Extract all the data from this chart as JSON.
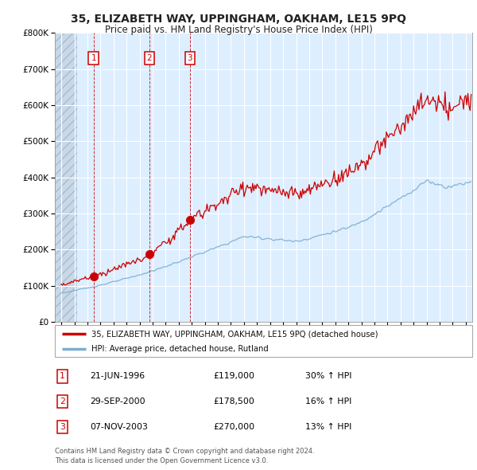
{
  "title": "35, ELIZABETH WAY, UPPINGHAM, OAKHAM, LE15 9PQ",
  "subtitle": "Price paid vs. HM Land Registry's House Price Index (HPI)",
  "legend_house": "35, ELIZABETH WAY, UPPINGHAM, OAKHAM, LE15 9PQ (detached house)",
  "legend_hpi": "HPI: Average price, detached house, Rutland",
  "transactions": [
    {
      "label": "1",
      "date": "21-JUN-1996",
      "price": 119000,
      "hpi_pct": "30% ↑ HPI",
      "x": 1996.47
    },
    {
      "label": "2",
      "date": "29-SEP-2000",
      "price": 178500,
      "hpi_pct": "16% ↑ HPI",
      "x": 2000.75
    },
    {
      "label": "3",
      "date": "07-NOV-2003",
      "price": 270000,
      "hpi_pct": "13% ↑ HPI",
      "x": 2003.85
    }
  ],
  "price_color": "#cc0000",
  "hpi_color": "#7aadcf",
  "background_color": "#ffffff",
  "plot_bg_color": "#ddeeff",
  "grid_color": "#ffffff",
  "footer": "Contains HM Land Registry data © Crown copyright and database right 2024.\nThis data is licensed under the Open Government Licence v3.0.",
  "ylim": [
    0,
    800000
  ],
  "xlim_start": 1993.5,
  "xlim_end": 2025.5,
  "hatch_end": 1995.2
}
